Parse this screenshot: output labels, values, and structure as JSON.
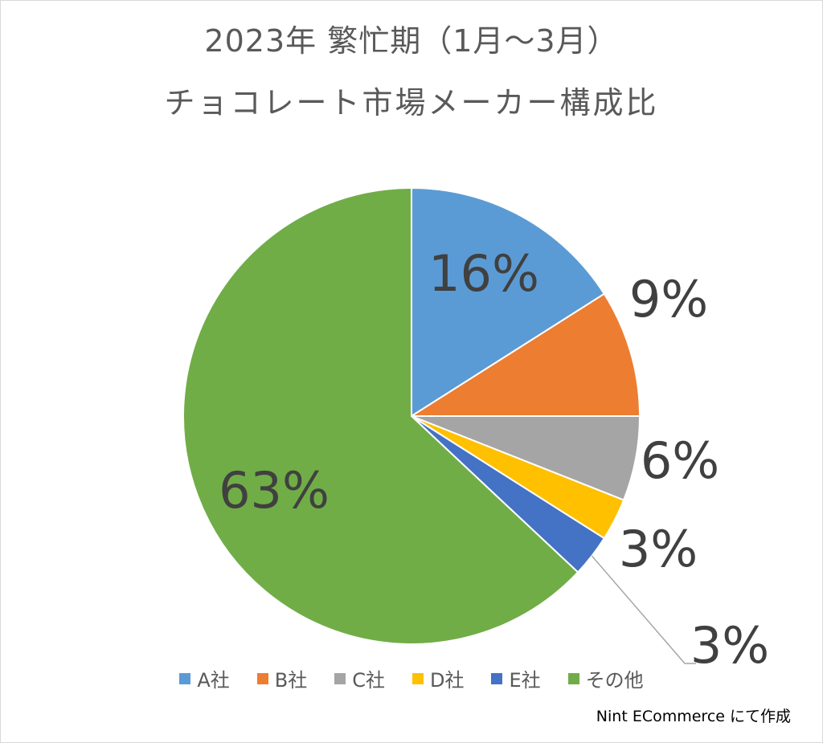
{
  "title_line1": "2023年 繁忙期（1月～3月）",
  "title_line2": "チョコレート市場メーカー構成比",
  "source_note": "Nint ECommerce にて作成",
  "chart_data": {
    "type": "pie",
    "title": "2023年 繁忙期（1月～3月） チョコレート市場メーカー構成比",
    "categories": [
      "A社",
      "B社",
      "C社",
      "D社",
      "E社",
      "その他"
    ],
    "values": [
      16,
      9,
      6,
      3,
      3,
      63
    ],
    "labels": [
      "16%",
      "9%",
      "6%",
      "3%",
      "3%",
      "63%"
    ],
    "colors": [
      "#5b9bd5",
      "#ed7d31",
      "#a5a5a5",
      "#ffc000",
      "#4472c4",
      "#70ad47"
    ],
    "legend_position": "bottom",
    "start_angle": "12 o'clock",
    "direction": "clockwise"
  }
}
